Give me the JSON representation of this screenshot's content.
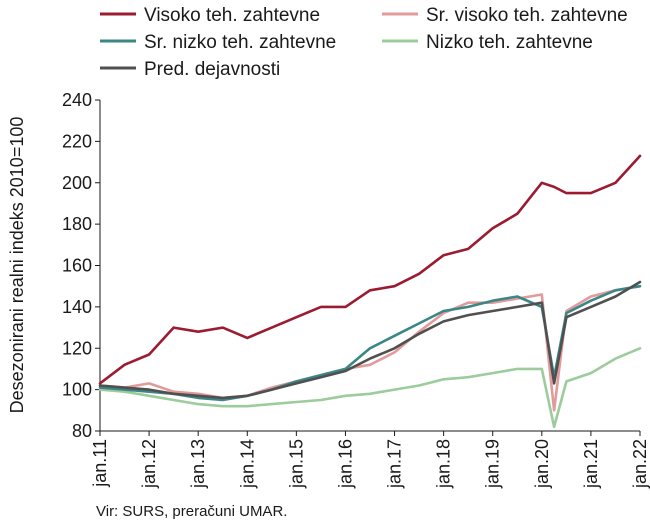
{
  "chart_data": {
    "type": "line",
    "title": "",
    "ylabel": "Desezonirani realni indeks 2010=100",
    "xlabel": "",
    "ylim": [
      80,
      240
    ],
    "yticks": [
      80,
      100,
      120,
      140,
      160,
      180,
      200,
      220,
      240
    ],
    "xlim": [
      2011,
      2022
    ],
    "xtick_labels": [
      "jan.11",
      "jan.12",
      "jan.13",
      "jan.14",
      "jan.15",
      "jan.16",
      "jan.17",
      "jan.18",
      "jan.19",
      "jan.20",
      "jan.21",
      "jan.22"
    ],
    "x": [
      "2011-01",
      "2011-07",
      "2012-01",
      "2012-07",
      "2013-01",
      "2013-07",
      "2014-01",
      "2014-07",
      "2015-01",
      "2015-07",
      "2016-01",
      "2016-07",
      "2017-01",
      "2017-07",
      "2018-01",
      "2018-07",
      "2019-01",
      "2019-07",
      "2020-01",
      "2020-04",
      "2020-07",
      "2021-01",
      "2021-07",
      "2022-01"
    ],
    "legend_position": "top",
    "grid": false,
    "series": [
      {
        "name": "Visoko teh. zahtevne",
        "color": "#9b1b30",
        "values": [
          103,
          112,
          117,
          130,
          128,
          130,
          125,
          130,
          135,
          140,
          140,
          148,
          150,
          156,
          165,
          168,
          178,
          185,
          200,
          198,
          195,
          195,
          200,
          213
        ]
      },
      {
        "name": "Sr. visoko teh. zahtevne",
        "color": "#e29a9a",
        "values": [
          102,
          101,
          103,
          99,
          98,
          96,
          97,
          101,
          104,
          107,
          110,
          112,
          118,
          128,
          137,
          142,
          142,
          144,
          146,
          90,
          138,
          145,
          148,
          150
        ]
      },
      {
        "name": "Sr. nizko teh. zahtevne",
        "color": "#3b8686",
        "values": [
          101,
          100,
          99,
          98,
          96,
          95,
          97,
          100,
          104,
          107,
          110,
          120,
          126,
          132,
          138,
          140,
          143,
          145,
          140,
          106,
          137,
          143,
          148,
          150
        ]
      },
      {
        "name": "Nizko teh. zahtevne",
        "color": "#9ccc9c",
        "values": [
          100,
          99,
          97,
          95,
          93,
          92,
          92,
          93,
          94,
          95,
          97,
          98,
          100,
          102,
          105,
          106,
          108,
          110,
          110,
          82,
          104,
          108,
          115,
          120
        ]
      },
      {
        "name": "Pred. dejavnosti",
        "color": "#505050",
        "values": [
          102,
          101,
          100,
          98,
          97,
          96,
          97,
          100,
          103,
          106,
          109,
          115,
          120,
          127,
          133,
          136,
          138,
          140,
          142,
          103,
          135,
          140,
          145,
          152
        ]
      }
    ]
  },
  "source": "Vir: SURS, preračuni UMAR."
}
